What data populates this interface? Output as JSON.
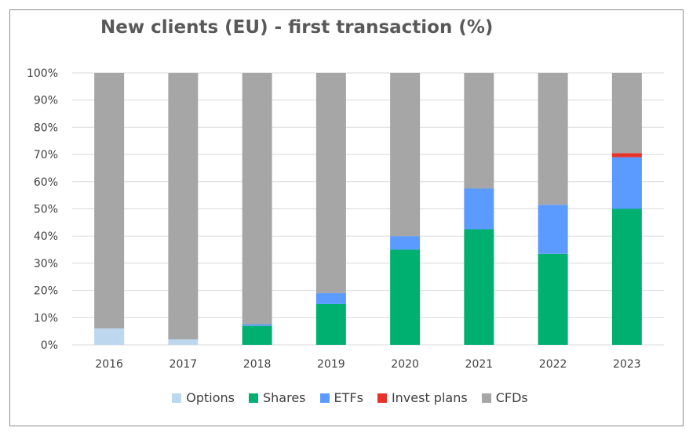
{
  "chart_data": {
    "type": "bar",
    "stacked": true,
    "title": "New clients (EU) - first transaction (%)",
    "xlabel": "",
    "ylabel": "",
    "ylim": [
      0,
      100
    ],
    "ytick_labels": [
      "0%",
      "10%",
      "20%",
      "30%",
      "40%",
      "50%",
      "60%",
      "70%",
      "80%",
      "90%",
      "100%"
    ],
    "categories": [
      "2016",
      "2017",
      "2018",
      "2019",
      "2020",
      "2021",
      "2022",
      "2023"
    ],
    "grid": true,
    "legend_position": "bottom",
    "series": [
      {
        "name": "Options",
        "color": "#bdd7ee",
        "values": [
          6,
          2,
          0,
          0,
          0,
          0,
          0,
          0
        ]
      },
      {
        "name": "Shares",
        "color": "#00b070",
        "values": [
          0,
          0,
          7,
          15,
          35,
          42.5,
          33.5,
          50
        ]
      },
      {
        "name": "ETFs",
        "color": "#5b9bff",
        "values": [
          0,
          0,
          0.5,
          4,
          5,
          15,
          18,
          19
        ]
      },
      {
        "name": "Invest plans",
        "color": "#e8332b",
        "values": [
          0,
          0,
          0,
          0,
          0,
          0,
          0,
          1.5
        ]
      },
      {
        "name": "CFDs",
        "color": "#a6a6a6",
        "values": [
          94,
          98,
          92.5,
          81,
          60,
          42.5,
          48.5,
          29.5
        ]
      }
    ]
  }
}
